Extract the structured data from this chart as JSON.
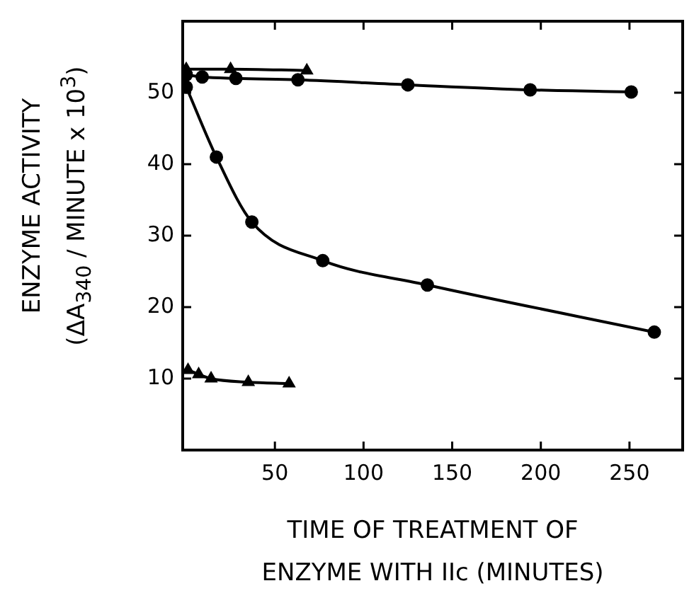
{
  "chart_data": {
    "type": "line",
    "xlabel": "TIME OF TREATMENT OF\nENZYME WITH IIc (MINUTES)",
    "ylabel": "ENZYME ACTIVITY\n(ΔA$_{340}$ / MINUTE x 10$^{3}$)",
    "xlim": [
      -2,
      280
    ],
    "xticks": [
      50,
      100,
      150,
      200,
      250
    ],
    "ylim": [
      0,
      60
    ],
    "yticks": [
      10,
      20,
      30,
      40,
      50
    ],
    "grid": false,
    "legend": false,
    "line_style": "solid",
    "series": [
      {
        "color": "#000000",
        "marker": "circle",
        "x": [
          0,
          9,
          28,
          63,
          125,
          194,
          251
        ],
        "values": [
          52.5,
          52.2,
          52.0,
          51.8,
          51.1,
          50.4,
          50.1
        ]
      },
      {
        "color": "#000000",
        "marker": "triangle",
        "x": [
          0,
          25,
          68
        ],
        "values": [
          53.3,
          53.3,
          53.1
        ]
      },
      {
        "color": "#000000",
        "marker": "circle",
        "x": [
          0,
          17,
          37,
          77,
          136,
          264
        ],
        "values": [
          50.8,
          41,
          31.9,
          26.5,
          23.1,
          16.5
        ]
      },
      {
        "color": "#000000",
        "marker": "triangle",
        "x": [
          1,
          7,
          14,
          35,
          58
        ],
        "values": [
          11.2,
          10.6,
          10.0,
          9.5,
          9.3
        ]
      }
    ]
  }
}
